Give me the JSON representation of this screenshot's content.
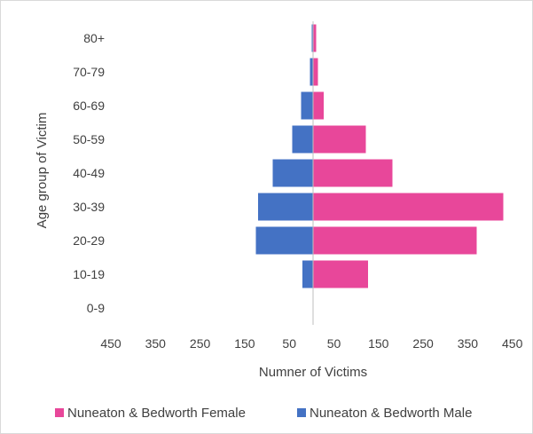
{
  "chart_data": {
    "type": "bar",
    "orientation": "horizontal",
    "layout": "population-pyramid",
    "categories": [
      "0-9",
      "10-19",
      "20-29",
      "30-39",
      "40-49",
      "50-59",
      "60-69",
      "70-79",
      "80+"
    ],
    "series": [
      {
        "name": "Nuneaton & Bedworth Female",
        "side": "right",
        "color": "#E8479A",
        "values": [
          0,
          125,
          370,
          430,
          180,
          120,
          25,
          12,
          8
        ]
      },
      {
        "name": "Nuneaton & Bedworth Male",
        "side": "left",
        "color": "#4472C4",
        "values": [
          0,
          25,
          130,
          125,
          92,
          48,
          28,
          8,
          4
        ]
      }
    ],
    "xlabel": "Numner of Victims",
    "ylabel": "Age group of Victim",
    "x_tick_labels": [
      "450",
      "350",
      "250",
      "150",
      "50",
      "50",
      "150",
      "250",
      "350",
      "450"
    ],
    "xlim": [
      -450,
      450
    ],
    "grid": false,
    "legend_position": "bottom"
  }
}
